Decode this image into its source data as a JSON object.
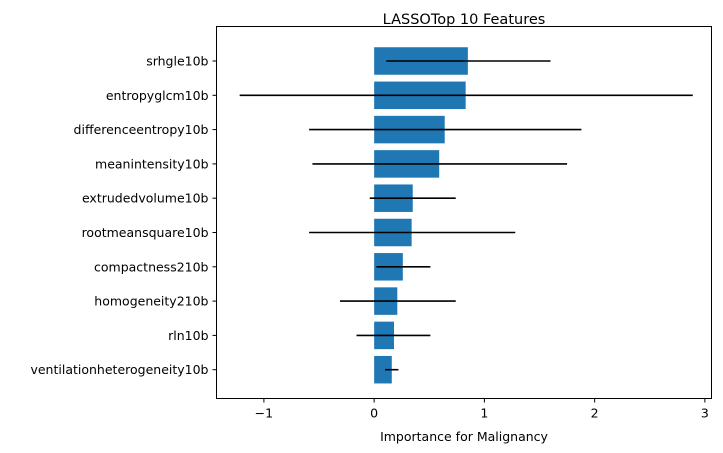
{
  "chart_data": {
    "type": "bar",
    "orientation": "horizontal",
    "title": "LASSOTop 10 Features",
    "xlabel": "Importance for Malignancy",
    "ylabel": "",
    "xlim": [
      -1.43,
      3.06
    ],
    "xticks": [
      -1,
      0,
      1,
      2,
      3
    ],
    "xtick_labels": [
      "−1",
      "0",
      "1",
      "2",
      "3"
    ],
    "grid": false,
    "bar_color": "#1f77b4",
    "errorbar_color": "#000000",
    "categories": [
      "srhgle10b",
      "entropyglcm10b",
      "differenceentropy10b",
      "meanintensity10b",
      "extrudedvolume10b",
      "rootmeansquare10b",
      "compactness210b",
      "homogeneity210b",
      "rln10b",
      "ventilationheterogeneity10b"
    ],
    "values": [
      0.85,
      0.83,
      0.64,
      0.59,
      0.35,
      0.34,
      0.26,
      0.21,
      0.18,
      0.16
    ],
    "errors": [
      [
        0.11,
        1.6
      ],
      [
        -1.22,
        2.89
      ],
      [
        -0.59,
        1.88
      ],
      [
        -0.56,
        1.75
      ],
      [
        -0.04,
        0.74
      ],
      [
        -0.59,
        1.28
      ],
      [
        0.02,
        0.51
      ],
      [
        -0.31,
        0.74
      ],
      [
        -0.16,
        0.51
      ],
      [
        0.1,
        0.22
      ]
    ]
  }
}
